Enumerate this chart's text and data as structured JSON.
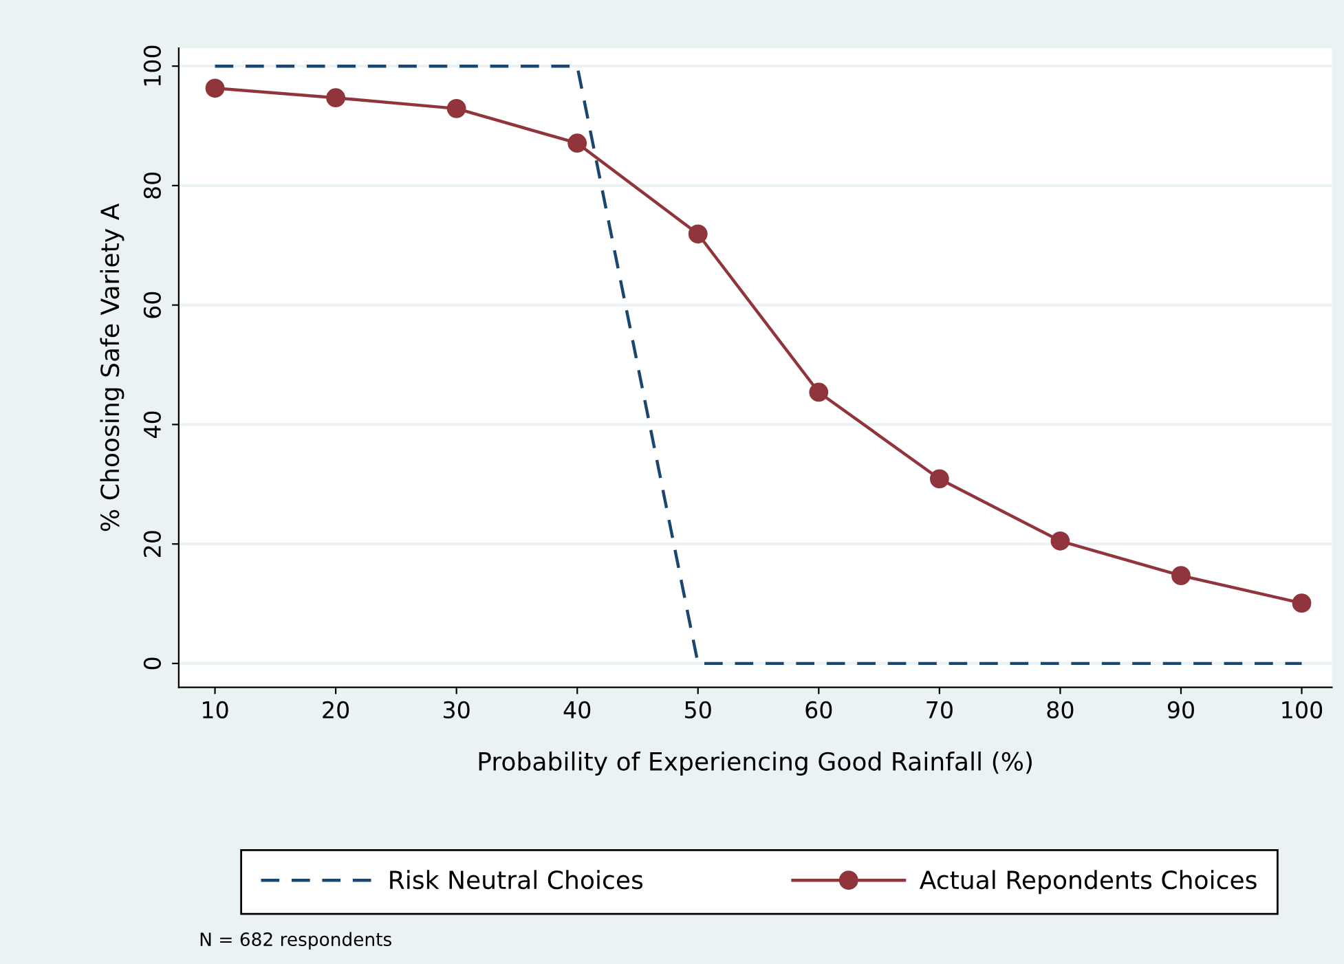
{
  "chart_data": {
    "type": "line",
    "xlabel": "Probability of Experiencing Good Rainfall (%)",
    "ylabel": "% Choosing Safe Variety A",
    "x": [
      10,
      20,
      30,
      40,
      50,
      60,
      70,
      80,
      90,
      100
    ],
    "series": [
      {
        "name": "Risk Neutral Choices",
        "color": "#1a476f",
        "values": [
          100,
          100,
          100,
          100,
          0,
          0,
          0,
          0,
          0,
          0
        ],
        "marker": "none",
        "line_style": "dashed"
      },
      {
        "name": "Actual Repondents Choices",
        "color": "#90353b",
        "values": [
          96.3,
          94.7,
          92.9,
          87.1,
          71.9,
          45.4,
          30.9,
          20.5,
          14.7,
          10.1
        ],
        "marker": "circle",
        "line_style": "solid"
      }
    ],
    "xlim": [
      7,
      102.5
    ],
    "ylim": [
      -4,
      103
    ],
    "xticks": [
      10,
      20,
      30,
      40,
      50,
      60,
      70,
      80,
      90,
      100
    ],
    "yticks": [
      0,
      20,
      40,
      60,
      80,
      100
    ],
    "grid": "y",
    "legend": "bottom",
    "annotations": [
      "N = 682 respondents"
    ]
  }
}
